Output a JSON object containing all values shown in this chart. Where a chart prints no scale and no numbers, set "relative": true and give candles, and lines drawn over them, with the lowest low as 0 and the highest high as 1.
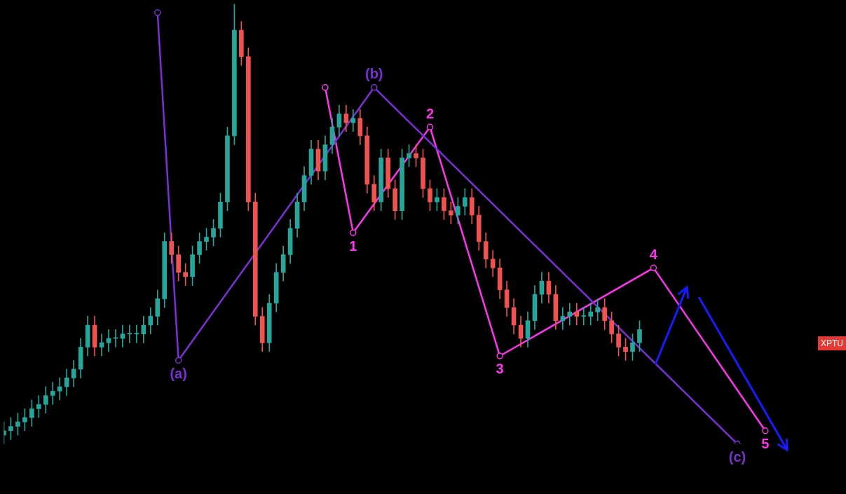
{
  "chart_data": {
    "type": "candlestick",
    "relative": true,
    "grid": false,
    "marker": "circle",
    "categories": [
      null,
      null,
      null,
      null,
      null,
      null,
      null,
      null,
      null,
      null,
      null,
      null,
      null,
      null,
      null,
      null,
      null,
      null,
      null,
      null,
      null,
      null,
      null,
      null,
      null,
      null,
      null,
      null,
      null,
      null,
      null,
      null,
      null,
      null,
      null,
      null,
      null,
      null,
      null,
      null,
      null,
      null,
      null,
      null,
      null,
      null,
      null,
      null,
      null,
      null,
      null,
      null,
      null,
      null,
      null,
      null,
      null,
      null,
      null,
      null,
      null,
      null,
      null,
      null,
      null,
      null,
      null,
      null,
      null,
      null,
      null,
      null,
      null,
      null,
      null,
      null,
      null,
      null,
      null,
      null,
      null,
      null,
      null,
      null,
      null,
      null,
      null,
      null,
      null,
      null,
      null,
      null,
      null,
      null,
      null,
      null,
      null,
      null,
      null,
      null,
      null,
      null,
      null,
      null,
      null,
      null,
      null,
      null,
      null,
      null,
      null,
      null,
      null,
      null,
      null,
      null,
      null,
      null,
      null,
      null,
      null
    ],
    "ohlc": [
      [
        0.02,
        0.05,
        0.0,
        0.03
      ],
      [
        0.03,
        0.06,
        0.01,
        0.04
      ],
      [
        0.04,
        0.07,
        0.02,
        0.05
      ],
      [
        0.05,
        0.08,
        0.03,
        0.06
      ],
      [
        0.06,
        0.1,
        0.04,
        0.08
      ],
      [
        0.08,
        0.11,
        0.06,
        0.09
      ],
      [
        0.09,
        0.13,
        0.07,
        0.11
      ],
      [
        0.11,
        0.14,
        0.09,
        0.12
      ],
      [
        0.12,
        0.15,
        0.1,
        0.13
      ],
      [
        0.13,
        0.17,
        0.11,
        0.15
      ],
      [
        0.15,
        0.19,
        0.13,
        0.17
      ],
      [
        0.17,
        0.24,
        0.15,
        0.22
      ],
      [
        0.22,
        0.29,
        0.2,
        0.27
      ],
      [
        0.27,
        0.29,
        0.2,
        0.22
      ],
      [
        0.22,
        0.25,
        0.2,
        0.23
      ],
      [
        0.23,
        0.26,
        0.21,
        0.24
      ],
      [
        0.24,
        0.26,
        0.22,
        0.24
      ],
      [
        0.24,
        0.27,
        0.22,
        0.25
      ],
      [
        0.25,
        0.27,
        0.23,
        0.25
      ],
      [
        0.25,
        0.27,
        0.23,
        0.25
      ],
      [
        0.25,
        0.29,
        0.23,
        0.27
      ],
      [
        0.27,
        0.31,
        0.25,
        0.29
      ],
      [
        0.29,
        0.35,
        0.27,
        0.33
      ],
      [
        0.33,
        0.48,
        0.31,
        0.46
      ],
      [
        0.46,
        0.48,
        0.41,
        0.43
      ],
      [
        0.43,
        0.45,
        0.37,
        0.39
      ],
      [
        0.39,
        0.41,
        0.36,
        0.38
      ],
      [
        0.38,
        0.45,
        0.36,
        0.43
      ],
      [
        0.43,
        0.48,
        0.41,
        0.46
      ],
      [
        0.46,
        0.49,
        0.44,
        0.47
      ],
      [
        0.47,
        0.51,
        0.45,
        0.49
      ],
      [
        0.49,
        0.57,
        0.47,
        0.55
      ],
      [
        0.55,
        0.72,
        0.53,
        0.7
      ],
      [
        0.7,
        1.0,
        0.68,
        0.94
      ],
      [
        0.94,
        0.96,
        0.86,
        0.88
      ],
      [
        0.88,
        0.9,
        0.53,
        0.55
      ],
      [
        0.55,
        0.57,
        0.27,
        0.29
      ],
      [
        0.29,
        0.31,
        0.21,
        0.23
      ],
      [
        0.23,
        0.34,
        0.21,
        0.32
      ],
      [
        0.32,
        0.41,
        0.3,
        0.39
      ],
      [
        0.39,
        0.45,
        0.37,
        0.43
      ],
      [
        0.43,
        0.51,
        0.41,
        0.49
      ],
      [
        0.49,
        0.57,
        0.47,
        0.55
      ],
      [
        0.55,
        0.63,
        0.53,
        0.61
      ],
      [
        0.61,
        0.69,
        0.59,
        0.67
      ],
      [
        0.67,
        0.69,
        0.6,
        0.62
      ],
      [
        0.62,
        0.7,
        0.6,
        0.68
      ],
      [
        0.68,
        0.74,
        0.66,
        0.72
      ],
      [
        0.72,
        0.77,
        0.7,
        0.75
      ],
      [
        0.75,
        0.77,
        0.71,
        0.73
      ],
      [
        0.73,
        0.76,
        0.71,
        0.74
      ],
      [
        0.74,
        0.76,
        0.68,
        0.7
      ],
      [
        0.7,
        0.72,
        0.57,
        0.59
      ],
      [
        0.59,
        0.61,
        0.53,
        0.55
      ],
      [
        0.55,
        0.67,
        0.53,
        0.65
      ],
      [
        0.65,
        0.67,
        0.56,
        0.58
      ],
      [
        0.58,
        0.6,
        0.51,
        0.53
      ],
      [
        0.53,
        0.67,
        0.51,
        0.65
      ],
      [
        0.65,
        0.68,
        0.63,
        0.66
      ],
      [
        0.66,
        0.68,
        0.63,
        0.65
      ],
      [
        0.65,
        0.67,
        0.56,
        0.58
      ],
      [
        0.58,
        0.6,
        0.53,
        0.55
      ],
      [
        0.55,
        0.58,
        0.53,
        0.56
      ],
      [
        0.56,
        0.58,
        0.51,
        0.53
      ],
      [
        0.53,
        0.55,
        0.5,
        0.52
      ],
      [
        0.52,
        0.56,
        0.5,
        0.54
      ],
      [
        0.54,
        0.58,
        0.52,
        0.56
      ],
      [
        0.56,
        0.58,
        0.5,
        0.52
      ],
      [
        0.52,
        0.54,
        0.44,
        0.46
      ],
      [
        0.46,
        0.48,
        0.4,
        0.42
      ],
      [
        0.42,
        0.44,
        0.38,
        0.4
      ],
      [
        0.4,
        0.42,
        0.33,
        0.35
      ],
      [
        0.35,
        0.37,
        0.29,
        0.31
      ],
      [
        0.31,
        0.33,
        0.25,
        0.27
      ],
      [
        0.27,
        0.29,
        0.22,
        0.24
      ],
      [
        0.24,
        0.3,
        0.22,
        0.28
      ],
      [
        0.28,
        0.36,
        0.26,
        0.34
      ],
      [
        0.34,
        0.39,
        0.32,
        0.37
      ],
      [
        0.37,
        0.39,
        0.32,
        0.34
      ],
      [
        0.34,
        0.36,
        0.26,
        0.28
      ],
      [
        0.28,
        0.31,
        0.26,
        0.29
      ],
      [
        0.29,
        0.32,
        0.27,
        0.3
      ],
      [
        0.3,
        0.32,
        0.27,
        0.29
      ],
      [
        0.29,
        0.31,
        0.27,
        0.29
      ],
      [
        0.29,
        0.32,
        0.27,
        0.3
      ],
      [
        0.3,
        0.33,
        0.28,
        0.31
      ],
      [
        0.31,
        0.33,
        0.26,
        0.28
      ],
      [
        0.28,
        0.3,
        0.23,
        0.25
      ],
      [
        0.25,
        0.27,
        0.2,
        0.22
      ],
      [
        0.22,
        0.24,
        0.19,
        0.21
      ],
      [
        0.21,
        0.25,
        0.19,
        0.23
      ],
      [
        0.23,
        0.28,
        0.21,
        0.26
      ],
      null,
      null,
      null,
      null,
      null,
      null,
      null,
      null,
      null,
      null,
      null,
      null,
      null,
      null,
      null,
      null,
      null,
      null,
      null,
      null,
      null,
      null,
      null,
      null,
      null,
      null,
      null,
      null,
      null
    ],
    "series": [
      {
        "type": "line",
        "color": "#7b2fd6",
        "values": [
          null,
          null,
          null,
          null,
          null,
          null,
          null,
          null,
          null,
          null,
          null,
          null,
          null,
          null,
          null,
          null,
          null,
          null,
          null,
          null,
          null,
          null,
          0.98,
          null,
          null,
          0.19,
          null,
          null,
          null,
          null,
          null,
          null,
          null,
          null,
          null,
          null,
          null,
          null,
          null,
          null,
          null,
          null,
          null,
          null,
          null,
          null,
          null,
          null,
          null,
          null,
          null,
          null,
          null,
          0.81,
          null,
          null,
          null,
          null,
          null,
          null,
          null,
          null,
          null,
          null,
          null,
          null,
          null,
          null,
          null,
          null,
          null,
          null,
          null,
          null,
          null,
          null,
          null,
          null,
          null,
          null,
          null,
          null,
          null,
          null,
          null,
          null,
          null,
          null,
          null,
          null,
          null,
          null,
          null,
          null,
          null,
          null,
          null,
          null,
          null,
          null,
          null,
          null,
          null,
          null,
          null,
          0.0,
          null,
          null,
          null,
          null,
          null,
          null,
          null,
          null,
          null,
          null,
          null,
          null,
          null,
          null,
          null
        ]
      },
      {
        "type": "line",
        "color": "#ff33f0",
        "values": [
          null,
          null,
          null,
          null,
          null,
          null,
          null,
          null,
          null,
          null,
          null,
          null,
          null,
          null,
          null,
          null,
          null,
          null,
          null,
          null,
          null,
          null,
          null,
          null,
          null,
          null,
          null,
          null,
          null,
          null,
          null,
          null,
          null,
          null,
          null,
          null,
          null,
          null,
          null,
          null,
          null,
          null,
          null,
          null,
          null,
          null,
          0.81,
          null,
          null,
          null,
          0.48,
          null,
          null,
          null,
          null,
          null,
          null,
          null,
          null,
          null,
          null,
          0.72,
          null,
          null,
          null,
          null,
          null,
          null,
          null,
          null,
          null,
          0.2,
          null,
          null,
          null,
          null,
          null,
          null,
          null,
          null,
          null,
          null,
          null,
          null,
          null,
          null,
          null,
          null,
          null,
          null,
          null,
          null,
          null,
          0.4,
          null,
          null,
          null,
          null,
          null,
          null,
          null,
          null,
          null,
          null,
          null,
          null,
          null,
          null,
          null,
          0.03,
          null,
          null,
          null,
          null,
          null,
          null,
          null,
          null,
          null,
          null,
          null
        ]
      }
    ],
    "annotations": [
      "XPTU",
      {
        "text": "(a)",
        "y": 0.19
      },
      {
        "text": "(b)",
        "y": 0.81
      },
      {
        "text": "(c)",
        "y": 0.0
      },
      {
        "text": "1",
        "y": 0.48
      },
      {
        "text": "2",
        "y": 0.72
      },
      {
        "text": "3",
        "y": 0.2
      },
      {
        "text": "4",
        "y": 0.4
      },
      {
        "text": "5",
        "y": 0.03
      }
    ]
  }
}
